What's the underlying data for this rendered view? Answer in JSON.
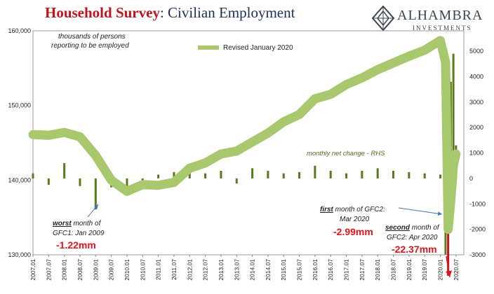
{
  "title": {
    "part1": "Household Survey",
    "part2": ": Civilian Employment"
  },
  "logo": {
    "brand": "ALHAMBRA",
    "sub": "INVESTMENTS"
  },
  "chart_data": {
    "type": "line",
    "title": "Household Survey: Civilian Employment",
    "left_axis": {
      "ylim": [
        130000,
        160000
      ],
      "ticks": [
        "130,000",
        "140,000",
        "150,000",
        "160,000"
      ],
      "tick_values": [
        130000,
        140000,
        150000,
        160000
      ]
    },
    "right_axis": {
      "ylim": [
        -3000,
        5800
      ],
      "ticks": [
        "-3000",
        "-2000",
        "-1000",
        "0",
        "1000",
        "2000",
        "3000",
        "4000",
        "5000"
      ],
      "tick_values": [
        -3000,
        -2000,
        -1000,
        0,
        1000,
        2000,
        3000,
        4000,
        5000
      ]
    },
    "x_ticks": [
      "2007.01",
      "2007.07",
      "2008.01",
      "2008.07",
      "2009.01",
      "2009.07",
      "2010.01",
      "2010.07",
      "2011.01",
      "2011.07",
      "2012.01",
      "2012.07",
      "2013.01",
      "2013.07",
      "2014.01",
      "2014.07",
      "2015.01",
      "2015.07",
      "2016.01",
      "2016.07",
      "2017.01",
      "2017.07",
      "2018.01",
      "2018.07",
      "2019.01",
      "2019.07",
      "2020.01",
      "2020.07"
    ],
    "series": [
      {
        "name": "Revised January 2020",
        "axis": "left",
        "color": "#a8c86e",
        "points": [
          [
            "2007.01",
            146100
          ],
          [
            "2007.07",
            146000
          ],
          [
            "2008.01",
            146400
          ],
          [
            "2008.07",
            145800
          ],
          [
            "2009.01",
            143300
          ],
          [
            "2009.07",
            140000
          ],
          [
            "2010.01",
            138500
          ],
          [
            "2010.07",
            139400
          ],
          [
            "2011.01",
            139300
          ],
          [
            "2011.07",
            139700
          ],
          [
            "2012.01",
            141600
          ],
          [
            "2012.07",
            142300
          ],
          [
            "2013.01",
            143500
          ],
          [
            "2013.07",
            143900
          ],
          [
            "2014.01",
            145100
          ],
          [
            "2014.07",
            146300
          ],
          [
            "2015.01",
            147800
          ],
          [
            "2015.07",
            148800
          ],
          [
            "2016.01",
            150900
          ],
          [
            "2016.07",
            151500
          ],
          [
            "2017.01",
            152800
          ],
          [
            "2017.07",
            153700
          ],
          [
            "2018.01",
            154800
          ],
          [
            "2018.07",
            155700
          ],
          [
            "2019.01",
            156600
          ],
          [
            "2019.07",
            157400
          ],
          [
            "2020.01",
            158700
          ],
          [
            "2020.03",
            155800
          ],
          [
            "2020.04",
            133400
          ],
          [
            "2020.05",
            137200
          ],
          [
            "2020.06",
            142000
          ],
          [
            "2020.07",
            143500
          ]
        ]
      },
      {
        "name": "monthly net change - RHS",
        "axis": "right",
        "type": "bar",
        "color": "#5b7a1f",
        "bars": [
          [
            "2007.01",
            200
          ],
          [
            "2007.07",
            -250
          ],
          [
            "2008.01",
            600
          ],
          [
            "2008.07",
            -300
          ],
          [
            "2009.01",
            -1220
          ],
          [
            "2009.07",
            -350
          ],
          [
            "2010.01",
            -400
          ],
          [
            "2010.07",
            -200
          ],
          [
            "2011.01",
            150
          ],
          [
            "2011.07",
            250
          ],
          [
            "2012.01",
            500
          ],
          [
            "2012.07",
            200
          ],
          [
            "2013.01",
            300
          ],
          [
            "2013.07",
            -200
          ],
          [
            "2014.01",
            400
          ],
          [
            "2014.07",
            300
          ],
          [
            "2015.01",
            200
          ],
          [
            "2015.07",
            250
          ],
          [
            "2016.01",
            500
          ],
          [
            "2016.07",
            300
          ],
          [
            "2017.01",
            200
          ],
          [
            "2017.07",
            300
          ],
          [
            "2018.01",
            400
          ],
          [
            "2018.07",
            300
          ],
          [
            "2019.01",
            250
          ],
          [
            "2019.07",
            200
          ],
          [
            "2020.01",
            150
          ],
          [
            "2020.03",
            -2990
          ],
          [
            "2020.04",
            -22370
          ],
          [
            "2020.05",
            3800
          ],
          [
            "2020.06",
            4900
          ],
          [
            "2020.07",
            1300
          ]
        ]
      }
    ],
    "legend": {
      "label": "Revised January 2020",
      "position": "top-center"
    },
    "annotations": {
      "units": [
        "thousands of persons",
        "reporting to be employed"
      ],
      "rhs_label": "monthly net change - RHS",
      "gfc1": {
        "emph": "worst",
        "text1": " month of",
        "text2": "GFC1: Jan 2009",
        "value": "-1.22mm"
      },
      "gfc2_first": {
        "emph": "first",
        "text1": " month of GFC2:",
        "text2": "Mar 2020",
        "value": "-2.99mm"
      },
      "gfc2_second": {
        "emph": "second",
        "text1": " month of",
        "text2": "GFC2: Apr 2020",
        "value": "-22.37mm"
      }
    }
  }
}
